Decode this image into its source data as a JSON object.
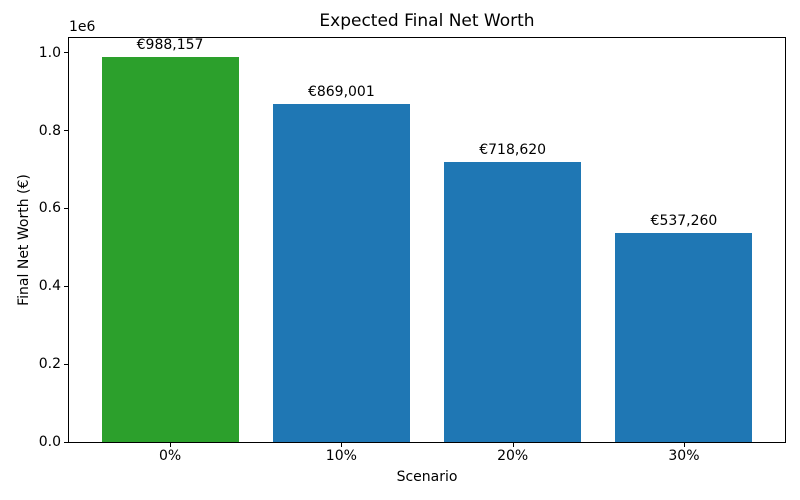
{
  "chart_data": {
    "type": "bar",
    "title": "Expected Final Net Worth",
    "xlabel": "Scenario",
    "ylabel": "Final Net Worth (€)",
    "offset_text": "1e6",
    "categories": [
      "0%",
      "10%",
      "20%",
      "30%"
    ],
    "values": [
      988157,
      869001,
      718620,
      537260
    ],
    "bar_labels": [
      "€988,157",
      "€869,001",
      "€718,620",
      "€537,260"
    ],
    "bar_colors": [
      "#2ca02c",
      "#1f77b4",
      "#1f77b4",
      "#1f77b4"
    ],
    "highlight_color": "#2ca02c",
    "default_color": "#1f77b4",
    "yticks": [
      0,
      200000,
      400000,
      600000,
      800000,
      1000000
    ],
    "ytick_labels": [
      "0.0",
      "0.2",
      "0.4",
      "0.6",
      "0.8",
      "1.0"
    ],
    "ylim": [
      0,
      1037565
    ],
    "xlim": [
      -0.59,
      3.59
    ],
    "bar_width": 0.8,
    "grid": false,
    "legend_position": "none"
  }
}
